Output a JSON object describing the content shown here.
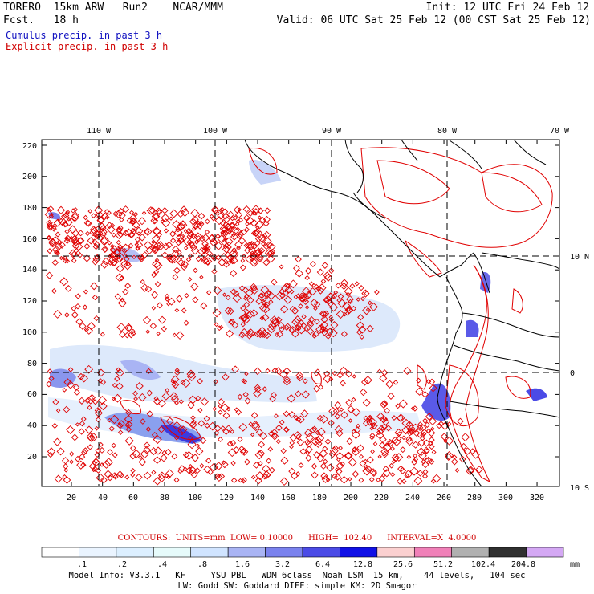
{
  "header": {
    "model": "TORERO  15km ARW   Run2    NCAR/MMM",
    "fcst": "Fcst.   18 h",
    "init": "Init: 12 UTC Fri 24 Feb 12",
    "valid": "Valid: 06 UTC Sat 25 Feb 12 (00 CST Sat 25 Feb 12)",
    "line_blue": "Cumulus precip. in past 3 h",
    "line_red": "Explicit precip. in past 3 h"
  },
  "top_lon_labels": [
    "110 W",
    "100 W",
    "90 W",
    "80 W",
    "70 W"
  ],
  "right_lat_labels": [
    "10 N",
    "0",
    "10 S"
  ],
  "x_ticks": [
    "20",
    "40",
    "60",
    "80",
    "100",
    "120",
    "140",
    "160",
    "180",
    "200",
    "220",
    "240",
    "260",
    "280",
    "300",
    "320"
  ],
  "y_ticks": [
    "220",
    "200",
    "180",
    "160",
    "140",
    "120",
    "100",
    "80",
    "60",
    "40",
    "20"
  ],
  "contours": {
    "label": "CONTOURS:  UNITS=mm  LOW= 0.10000      HIGH=  102.40      INTERVAL=X  4.0000"
  },
  "colorbar": {
    "labels": [
      ".1",
      ".2",
      ".4",
      ".8",
      "1.6",
      "3.2",
      "6.4",
      "12.8",
      "25.6",
      "51.2",
      "102.4",
      "204.8"
    ],
    "units": "mm",
    "colors": [
      "#ffffff",
      "#eaf4ff",
      "#dcefff",
      "#e6fbfb",
      "#d0e4ff",
      "#a9b4f4",
      "#7a82ee",
      "#4b4be6",
      "#1010e6",
      "#fbd0d0",
      "#f080b8",
      "#b0b0b0",
      "#303030",
      "#d4a8f4"
    ]
  },
  "footer": {
    "line1": "Model Info: V3.3.1   KF     YSU PBL   WDM 6class  Noah LSM  15 km,    44 levels,   104 sec",
    "line2": "LW: Godd SW: Goddard DIFF: simple KM: 2D Smagor"
  }
}
